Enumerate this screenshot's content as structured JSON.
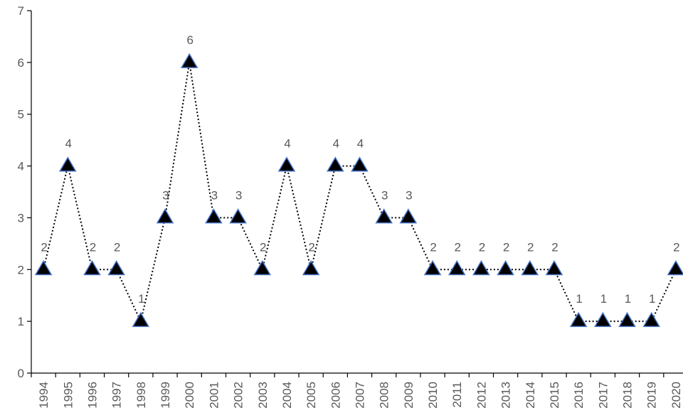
{
  "chart_data": {
    "type": "line",
    "title": "",
    "xlabel": "",
    "ylabel": "",
    "ylim": [
      0,
      7
    ],
    "y_ticks": [
      "0",
      "1",
      "2",
      "3",
      "4",
      "5",
      "6",
      "7"
    ],
    "grid": false,
    "legend": "none",
    "categories": [
      "1994",
      "1995",
      "1996",
      "1997",
      "1998",
      "1999",
      "2000",
      "2001",
      "2002",
      "2003",
      "2004",
      "2005",
      "2006",
      "2007",
      "2008",
      "2009",
      "2010",
      "2011",
      "2012",
      "2013",
      "2014",
      "2015",
      "2016",
      "2017",
      "2018",
      "2019",
      "2020"
    ],
    "series": [
      {
        "values": [
          2,
          4,
          2,
          2,
          1,
          3,
          6,
          3,
          3,
          2,
          4,
          2,
          4,
          4,
          3,
          3,
          2,
          2,
          2,
          2,
          2,
          2,
          1,
          1,
          1,
          1,
          2
        ],
        "line_style": "dotted",
        "line_color": "#000000",
        "marker": "triangle",
        "marker_fill": "#000000",
        "marker_edge": "#4472C4"
      }
    ]
  }
}
